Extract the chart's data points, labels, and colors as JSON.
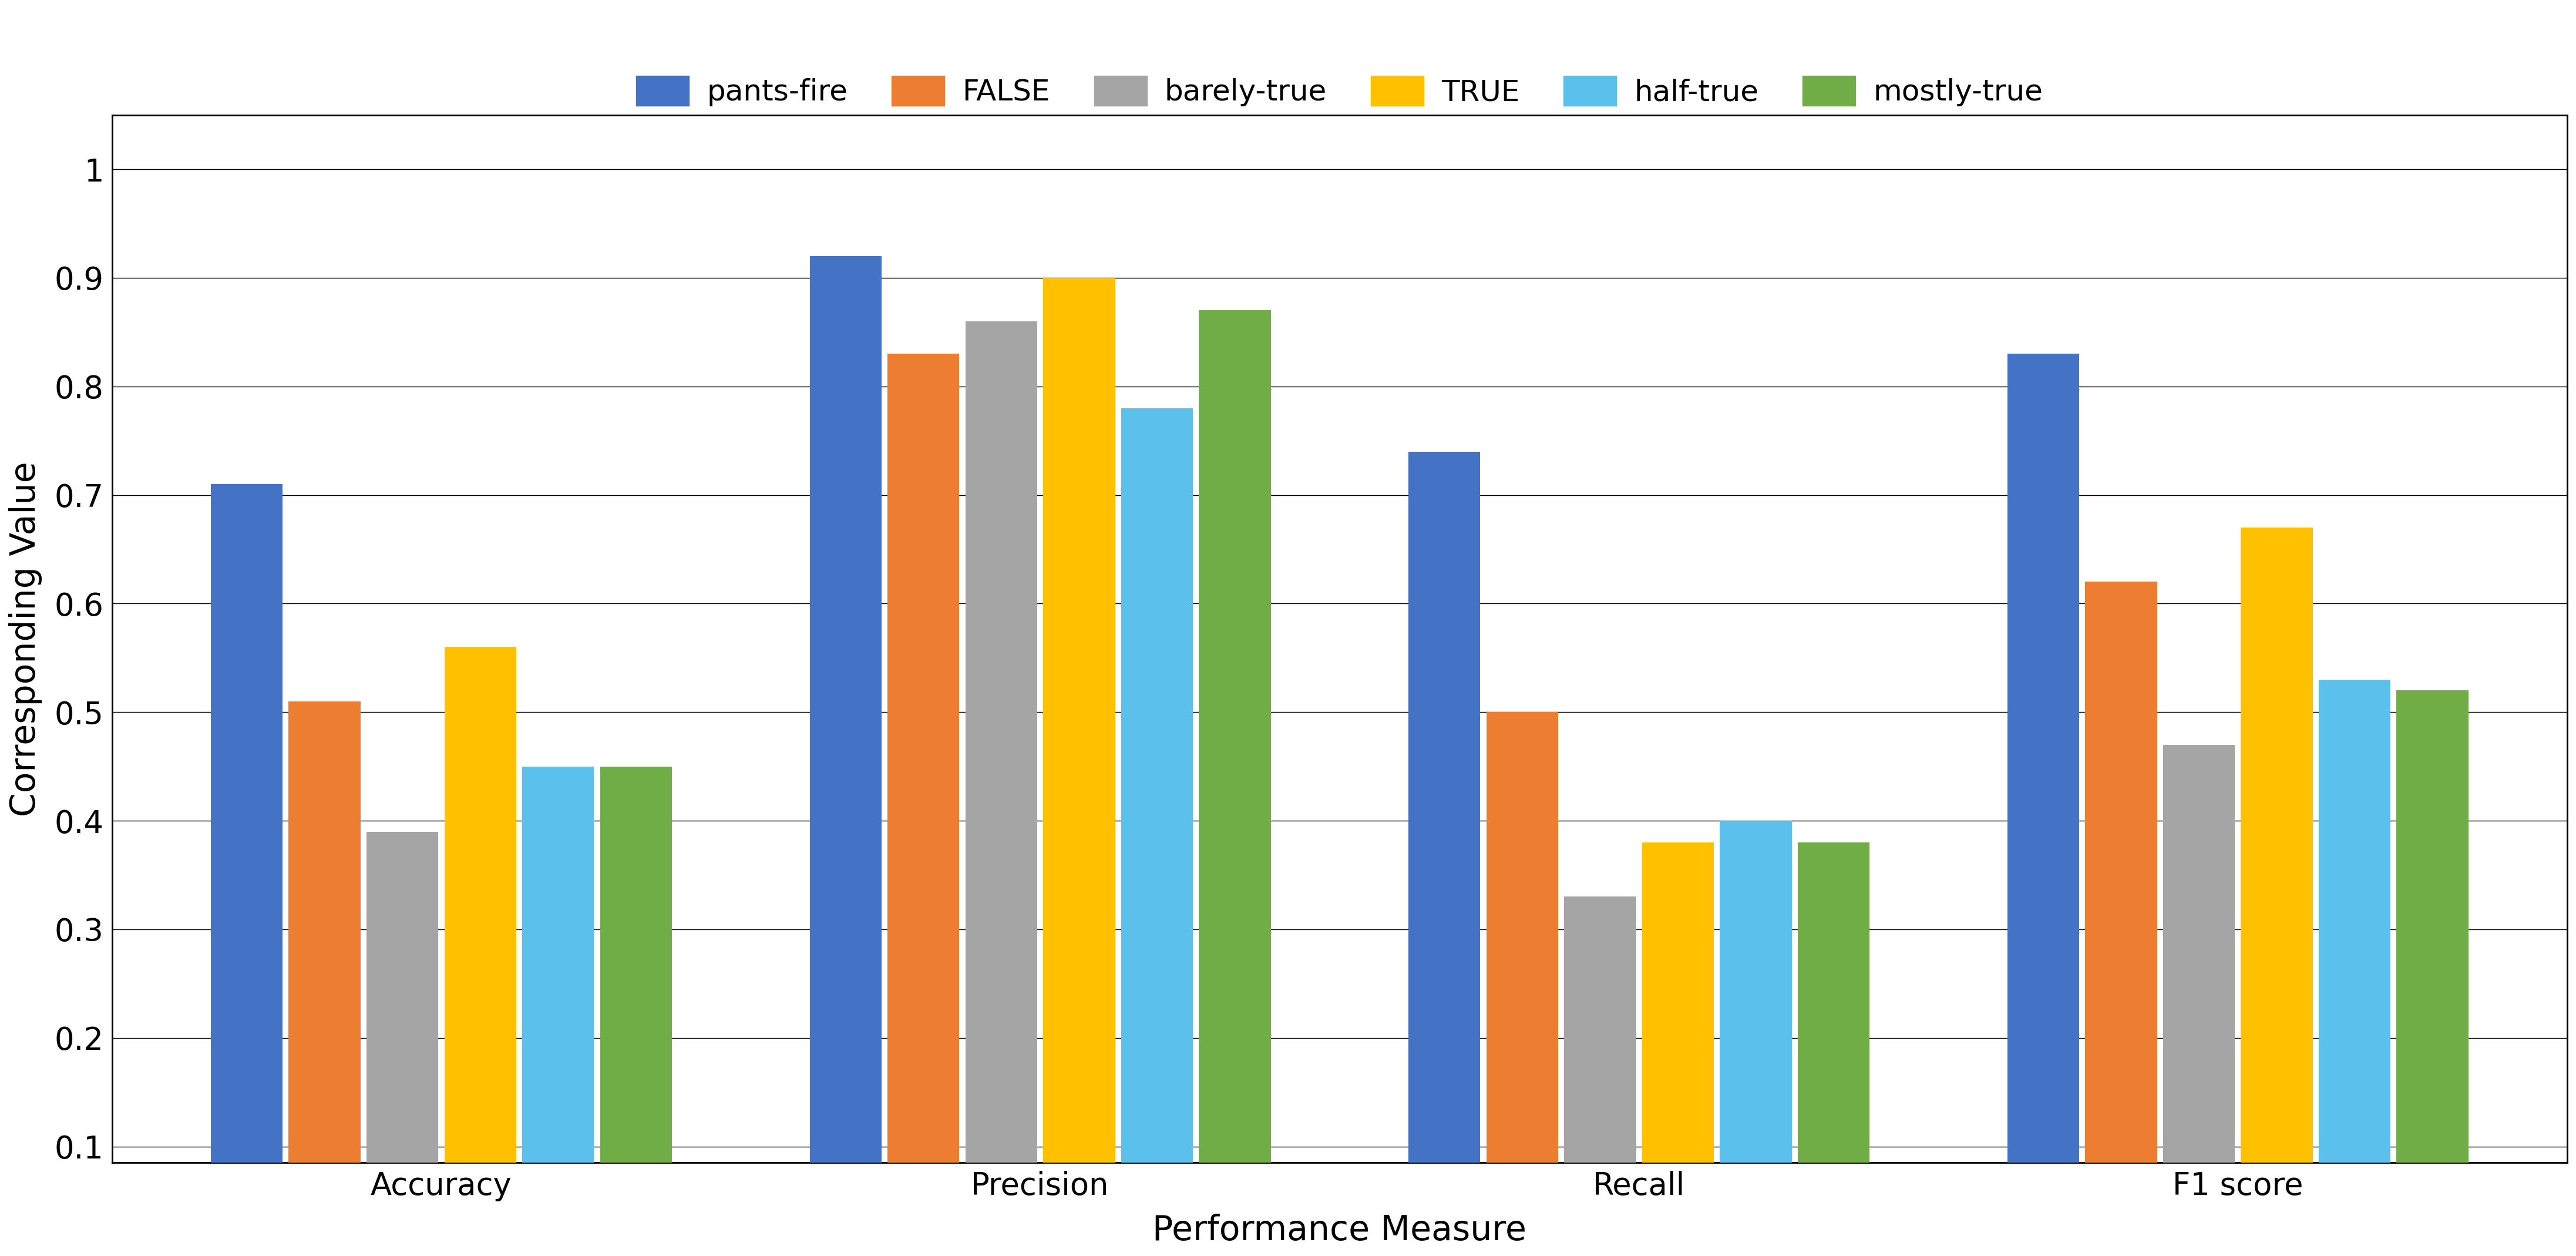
{
  "categories": [
    "Accuracy",
    "Precision",
    "Recall",
    "F1 score"
  ],
  "series": {
    "pants-fire": [
      0.71,
      0.92,
      0.74,
      0.83
    ],
    "FALSE": [
      0.51,
      0.83,
      0.5,
      0.62
    ],
    "barely-true": [
      0.39,
      0.86,
      0.33,
      0.47
    ],
    "TRUE": [
      0.56,
      0.9,
      0.38,
      0.67
    ],
    "half-true": [
      0.45,
      0.78,
      0.4,
      0.53
    ],
    "mostly-true": [
      0.45,
      0.87,
      0.38,
      0.52
    ]
  },
  "colors": {
    "pants-fire": "#4472C4",
    "FALSE": "#ED7D31",
    "barely-true": "#A5A5A5",
    "TRUE": "#FFC000",
    "half-true": "#5BC0EB",
    "mostly-true": "#70AD47"
  },
  "legend_order": [
    "pants-fire",
    "FALSE",
    "barely-true",
    "TRUE",
    "half-true",
    "mostly-true"
  ],
  "xlabel": "Performance Measure",
  "ylabel": "Corresponding Value",
  "yticks": [
    0.1,
    0.2,
    0.3,
    0.4,
    0.5,
    0.6,
    0.7,
    0.8,
    0.9,
    1.0
  ],
  "ylim": [
    0.085,
    1.05
  ],
  "background_color": "#ffffff",
  "grid_color": "#000000",
  "xlabel_fontsize": 42,
  "ylabel_fontsize": 42,
  "tick_fontsize": 38,
  "legend_fontsize": 36,
  "bar_width": 0.12,
  "bar_spacing": 0.01
}
